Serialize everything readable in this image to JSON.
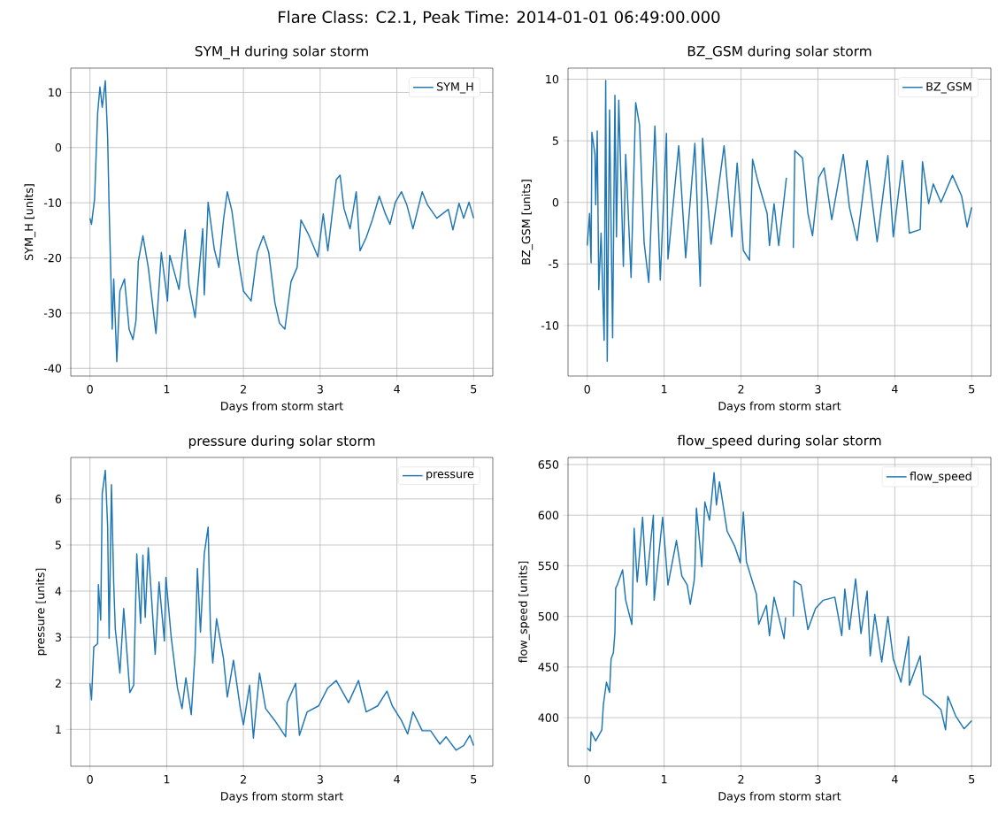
{
  "chart_data": [
    {
      "type": "line",
      "title": "SYM_H during solar storm",
      "xlabel": "Days from storm start",
      "ylabel": "SYM_H [units]",
      "annotations": [
        "Flare Class: C2.1, Peak Time: 2014-01-01 06:49:00.000"
      ],
      "xlim": [
        -0.25,
        5.25
      ],
      "xticks": [
        0,
        1,
        2,
        3,
        4,
        5
      ],
      "ylim": [
        -41.4,
        14.4
      ],
      "yticks": [
        -40,
        -30,
        -20,
        -10,
        0,
        10
      ],
      "grid": true,
      "legend": "top right",
      "series": [
        {
          "name": "SYM_H",
          "color": "#1f77b4",
          "x": [
            0,
            0.02,
            0.06,
            0.1,
            0.13,
            0.16,
            0.2,
            0.23,
            0.25,
            0.29,
            0.31,
            0.35,
            0.39,
            0.45,
            0.51,
            0.56,
            0.6,
            0.63,
            0.69,
            0.76,
            0.86,
            0.93,
            1.01,
            1.04,
            1.16,
            1.24,
            1.29,
            1.37,
            1.47,
            1.49,
            1.54,
            1.62,
            1.68,
            1.74,
            1.79,
            1.85,
            1.93,
            2.0,
            2.1,
            2.18,
            2.26,
            2.33,
            2.41,
            2.47,
            2.54,
            2.62,
            2.7,
            2.75,
            2.85,
            2.97,
            3.04,
            3.1,
            3.21,
            3.26,
            3.31,
            3.39,
            3.47,
            3.52,
            3.6,
            3.68,
            3.77,
            3.85,
            3.91,
            3.98,
            4.06,
            4.13,
            4.21,
            4.33,
            4.4,
            4.52,
            4.67,
            4.73,
            4.81,
            4.87,
            4.94,
            5.0
          ],
          "values": [
            -12.8,
            -13.9,
            -9.3,
            6.2,
            11,
            7.3,
            12.1,
            2,
            -11,
            -32.9,
            -23.8,
            -38.8,
            -26,
            -23.8,
            -32.9,
            -34.8,
            -31.3,
            -20.6,
            -16,
            -21.7,
            -33.7,
            -19,
            -27.8,
            -19.5,
            -25.7,
            -14.9,
            -24.9,
            -30.8,
            -14.7,
            -26.7,
            -9.9,
            -18.4,
            -21.7,
            -13.1,
            -8,
            -11.5,
            -20,
            -26,
            -27.8,
            -19,
            -16,
            -19,
            -28.1,
            -31.8,
            -32.9,
            -24.3,
            -21.7,
            -13.1,
            -15.8,
            -19.8,
            -12,
            -18.7,
            -5.8,
            -5,
            -11,
            -14.7,
            -8,
            -18.7,
            -16.3,
            -13.1,
            -8.8,
            -12,
            -13.9,
            -9.9,
            -8,
            -10.4,
            -14.7,
            -8,
            -10.4,
            -12.8,
            -11.2,
            -14.9,
            -10.1,
            -12.8,
            -9.9,
            -12.8
          ]
        }
      ]
    },
    {
      "type": "line",
      "title": "BZ_GSM during solar storm",
      "xlabel": "Days from storm start",
      "ylabel": "BZ_GSM [units]",
      "xlim": [
        -0.25,
        5.25
      ],
      "xticks": [
        0,
        1,
        2,
        3,
        4,
        5
      ],
      "ylim": [
        -14.1,
        10.9
      ],
      "yticks": [
        -10,
        -5,
        0,
        5,
        10
      ],
      "grid": true,
      "legend": "top right",
      "series": [
        {
          "name": "BZ_GSM",
          "color": "#1f77b4",
          "x": [
            0,
            0.03,
            0.05,
            0.06,
            0.1,
            0.11,
            0.13,
            0.15,
            0.18,
            0.22,
            0.24,
            0.26,
            0.29,
            0.33,
            0.36,
            0.38,
            0.41,
            0.47,
            0.5,
            0.57,
            0.63,
            0.68,
            0.74,
            0.8,
            0.88,
            0.95,
            1.03,
            1.05,
            1.19,
            1.28,
            1.4,
            1.47,
            1.5,
            1.61,
            1.78,
            1.88,
            1.95,
            2.03,
            2.11,
            2.15,
            2.22,
            2.34,
            2.37,
            2.43,
            2.49,
            2.56,
            2.59,
            2.63,
            2.68,
            2.7,
            2.8,
            2.87,
            2.93,
            3.01,
            3.08,
            3.18,
            3.33,
            3.41,
            3.51,
            3.64,
            3.77,
            3.91,
            3.98,
            4.1,
            4.19,
            4.33,
            4.36,
            4.44,
            4.5,
            4.6,
            4.75,
            4.87,
            4.94,
            5.0
          ],
          "values": [
            -3.5,
            -0.9,
            -4.9,
            5.7,
            3.9,
            -0.2,
            5.8,
            -7.1,
            -2.5,
            -11.2,
            9.9,
            -12.9,
            7.5,
            -11,
            8.7,
            -2.8,
            8.3,
            -5.2,
            3.9,
            -6.1,
            8.1,
            6.3,
            -3.3,
            -6.5,
            6.2,
            -6.3,
            5.6,
            -4.6,
            4.6,
            -4.5,
            4.8,
            -6.8,
            5.2,
            -3.4,
            4.6,
            -2.8,
            3.2,
            -3.9,
            -4.7,
            3.5,
            1.7,
            -0.9,
            -3.5,
            -0.1,
            -3.5,
            0.3,
            2,
            null,
            -3.7,
            4.2,
            3.6,
            -0.9,
            -2.7,
            2,
            2.8,
            -1.4,
            3.9,
            -0.4,
            -3.1,
            3.4,
            -3.2,
            3.8,
            -2.8,
            3.4,
            -2.5,
            -2.2,
            3.3,
            -0.1,
            1.5,
            0,
            2.2,
            0.5,
            -2,
            -0.4
          ]
        }
      ]
    },
    {
      "type": "line",
      "title": "pressure during solar storm",
      "xlabel": "Days from storm start",
      "ylabel": "pressure [units]",
      "xlim": [
        -0.25,
        5.25
      ],
      "xticks": [
        0,
        1,
        2,
        3,
        4,
        5
      ],
      "ylim": [
        0.2,
        6.9
      ],
      "yticks": [
        1,
        2,
        3,
        4,
        5,
        6
      ],
      "grid": true,
      "legend": "top right",
      "series": [
        {
          "name": "pressure",
          "color": "#1f77b4",
          "x": [
            0,
            0.02,
            0.05,
            0.1,
            0.11,
            0.14,
            0.16,
            0.2,
            0.23,
            0.25,
            0.28,
            0.31,
            0.33,
            0.39,
            0.44,
            0.52,
            0.57,
            0.61,
            0.66,
            0.69,
            0.72,
            0.76,
            0.85,
            0.9,
            0.97,
            0.99,
            1.06,
            1.14,
            1.2,
            1.25,
            1.32,
            1.37,
            1.4,
            1.44,
            1.49,
            1.54,
            1.57,
            1.6,
            1.65,
            1.74,
            1.79,
            1.87,
            1.96,
            2.0,
            2.08,
            2.13,
            2.21,
            2.29,
            2.41,
            2.55,
            2.57,
            2.68,
            2.73,
            2.83,
            2.98,
            3.1,
            3.21,
            3.37,
            3.5,
            3.6,
            3.75,
            3.87,
            3.94,
            4.06,
            4.14,
            4.21,
            4.33,
            4.44,
            4.56,
            4.64,
            4.77,
            4.87,
            4.95,
            5.0
          ],
          "values": [
            2.0,
            1.64,
            2.79,
            2.86,
            4.14,
            3.37,
            6.12,
            6.62,
            5.42,
            2.98,
            6.31,
            4.14,
            3.18,
            2.22,
            3.62,
            1.8,
            1.96,
            4.81,
            3.3,
            4.78,
            3.43,
            4.94,
            2.63,
            4.2,
            2.92,
            4.3,
            2.98,
            1.9,
            1.45,
            2.12,
            1.32,
            2.66,
            4.49,
            3.11,
            4.81,
            5.39,
            3.18,
            2.44,
            3.4,
            2.54,
            1.7,
            2.5,
            1.45,
            1.1,
            1.96,
            0.81,
            2.22,
            1.45,
            1.19,
            0.84,
            1.58,
            2.0,
            0.87,
            1.38,
            1.51,
            1.9,
            2.06,
            1.58,
            2.06,
            1.38,
            1.51,
            1.83,
            1.51,
            1.19,
            0.9,
            1.38,
            0.97,
            0.97,
            0.68,
            0.84,
            0.55,
            0.65,
            0.87,
            0.65
          ]
        }
      ]
    },
    {
      "type": "line",
      "title": "flow_speed during solar storm",
      "xlabel": "Days from storm start",
      "ylabel": "flow_speed [units]",
      "xlim": [
        -0.25,
        5.25
      ],
      "xticks": [
        0,
        1,
        2,
        3,
        4,
        5
      ],
      "ylim": [
        352,
        657
      ],
      "yticks": [
        400,
        450,
        500,
        550,
        600,
        650
      ],
      "grid": true,
      "legend": "top right",
      "series": [
        {
          "name": "flow_speed",
          "color": "#1f77b4",
          "x": [
            0,
            0.04,
            0.05,
            0.11,
            0.19,
            0.21,
            0.25,
            0.29,
            0.31,
            0.34,
            0.36,
            0.37,
            0.39,
            0.46,
            0.5,
            0.58,
            0.61,
            0.65,
            0.72,
            0.77,
            0.86,
            0.87,
            0.98,
            1.05,
            1.16,
            1.23,
            1.3,
            1.34,
            1.39,
            1.4,
            1.42,
            1.49,
            1.53,
            1.59,
            1.65,
            1.68,
            1.72,
            1.82,
            1.92,
            1.99,
            2.03,
            2.07,
            2.15,
            2.2,
            2.23,
            2.33,
            2.37,
            2.43,
            2.56,
            2.58,
            2.63,
            2.68,
            2.69,
            2.78,
            2.87,
            2.97,
            3.07,
            3.22,
            3.31,
            3.35,
            3.41,
            3.49,
            3.54,
            3.56,
            3.64,
            3.68,
            3.74,
            3.83,
            3.91,
            3.98,
            4.08,
            4.18,
            4.19,
            4.33,
            4.37,
            4.48,
            4.6,
            4.66,
            4.69,
            4.79,
            4.9,
            5.0
          ],
          "values": [
            370,
            367,
            386,
            377,
            388,
            413,
            435,
            425,
            458,
            464,
            484,
            528,
            531,
            546,
            516,
            492,
            587,
            534,
            598,
            531,
            600,
            516,
            598,
            531,
            575,
            540,
            531,
            512,
            535,
            547,
            607,
            549,
            613,
            595,
            642,
            610,
            633,
            584,
            569,
            553,
            603,
            554,
            534,
            522,
            492,
            511,
            481,
            519,
            478,
            499,
            null,
            500,
            535,
            531,
            487,
            508,
            516,
            519,
            481,
            527,
            487,
            537,
            499,
            483,
            525,
            461,
            502,
            455,
            500,
            458,
            435,
            480,
            432,
            461,
            423,
            417,
            408,
            388,
            421,
            402,
            389,
            397
          ]
        }
      ]
    }
  ]
}
